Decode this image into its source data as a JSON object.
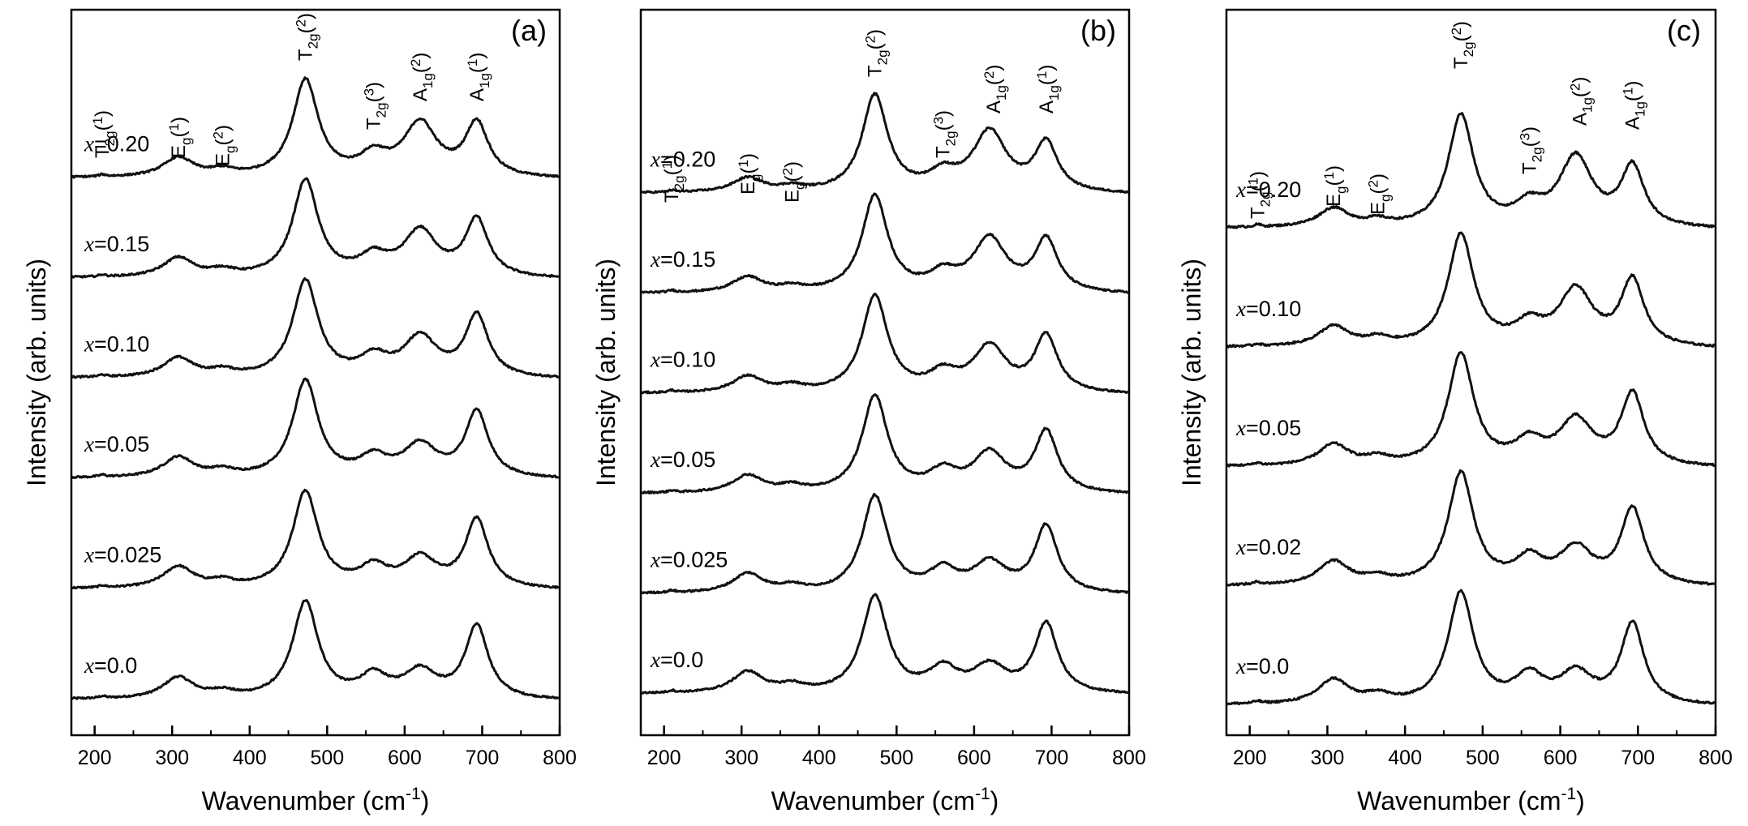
{
  "chart_data": [
    {
      "type": "line",
      "panel": "(a)",
      "xlabel_main": "Wavenumber (cm",
      "xlabel_exp": "-1",
      "xlabel_end": ")",
      "ylabel": "Intensity (arb. units)",
      "xlim": [
        170,
        800
      ],
      "xticks": [
        "200",
        "300",
        "400",
        "500",
        "600",
        "700",
        "800"
      ],
      "series": [
        {
          "name": "x=0.0",
          "var": "x",
          "value": "=0.0",
          "offset": 0.0,
          "amps": [
            0.02,
            0.22,
            0.06,
            1.0,
            0.22,
            0.28,
            0.75
          ],
          "trend": 0.05
        },
        {
          "name": "x=0.025",
          "var": "x",
          "value": "=0.025",
          "offset": 1.05,
          "amps": [
            0.02,
            0.22,
            0.06,
            1.0,
            0.2,
            0.3,
            0.71
          ],
          "trend": 0.05
        },
        {
          "name": "x=0.05",
          "var": "x",
          "value": "=0.05",
          "offset": 2.1,
          "amps": [
            0.02,
            0.21,
            0.06,
            1.0,
            0.19,
            0.33,
            0.68
          ],
          "trend": 0.05
        },
        {
          "name": "x=0.10",
          "var": "x",
          "value": "=0.10",
          "offset": 3.05,
          "amps": [
            0.02,
            0.2,
            0.06,
            1.0,
            0.19,
            0.41,
            0.64
          ],
          "trend": 0.05
        },
        {
          "name": "x=0.15",
          "var": "x",
          "value": "=0.15",
          "offset": 4.0,
          "amps": [
            0.02,
            0.2,
            0.06,
            1.0,
            0.19,
            0.47,
            0.59
          ],
          "trend": 0.05
        },
        {
          "name": "x=0.20",
          "var": "x",
          "value": "=0.20",
          "offset": 4.95,
          "amps": [
            0.02,
            0.2,
            0.06,
            1.0,
            0.2,
            0.55,
            0.55
          ],
          "trend": 0.05
        }
      ],
      "mode_labels": [
        {
          "base": "T",
          "sub": "2g",
          "idx": "1",
          "rotated": true
        },
        {
          "base": "E",
          "sub": "g",
          "idx": "1",
          "rotated": true
        },
        {
          "base": "E",
          "sub": "g",
          "idx": "2",
          "rotated": true
        },
        {
          "base": "T",
          "sub": "2g",
          "idx": "2",
          "rotated": true
        },
        {
          "base": "T",
          "sub": "2g",
          "idx": "3",
          "rotated": true
        },
        {
          "base": "A",
          "sub": "1g",
          "idx": "2",
          "rotated": true
        },
        {
          "base": "A",
          "sub": "1g",
          "idx": "1",
          "rotated": true
        }
      ]
    },
    {
      "type": "line",
      "panel": "(b)",
      "xlabel_main": "Wavenumber (cm",
      "xlabel_exp": "-1",
      "xlabel_end": ")",
      "ylabel": "Intensity (arb. units)",
      "xlim": [
        170,
        800
      ],
      "xticks": [
        "200",
        "300",
        "400",
        "500",
        "600",
        "700",
        "800"
      ],
      "series": [
        {
          "name": "x=0.0",
          "var": "x",
          "value": "=0.0",
          "offset": 0.0,
          "amps": [
            0.02,
            0.22,
            0.07,
            1.0,
            0.24,
            0.27,
            0.72
          ],
          "trend": 0.05
        },
        {
          "name": "x=0.025",
          "var": "x",
          "value": "=0.025",
          "offset": 0.95,
          "amps": [
            0.02,
            0.2,
            0.06,
            1.0,
            0.22,
            0.3,
            0.69
          ],
          "trend": 0.05
        },
        {
          "name": "x=0.05",
          "var": "x",
          "value": "=0.05",
          "offset": 1.9,
          "amps": [
            0.02,
            0.18,
            0.06,
            1.0,
            0.2,
            0.4,
            0.63
          ],
          "trend": 0.05
        },
        {
          "name": "x=0.10",
          "var": "x",
          "value": "=0.10",
          "offset": 2.85,
          "amps": [
            0.02,
            0.17,
            0.06,
            1.0,
            0.18,
            0.47,
            0.58
          ],
          "trend": 0.05
        },
        {
          "name": "x=0.15",
          "var": "x",
          "value": "=0.15",
          "offset": 3.8,
          "amps": [
            0.02,
            0.16,
            0.05,
            1.0,
            0.17,
            0.55,
            0.54
          ],
          "trend": 0.05
        },
        {
          "name": "x=0.20",
          "var": "x",
          "value": "=0.20",
          "offset": 4.75,
          "amps": [
            0.02,
            0.15,
            0.05,
            1.0,
            0.17,
            0.62,
            0.5
          ],
          "trend": 0.05
        }
      ],
      "mode_labels": [
        {
          "base": "T",
          "sub": "2g",
          "idx": "1",
          "rotated": true
        },
        {
          "base": "E",
          "sub": "g",
          "idx": "1",
          "rotated": true
        },
        {
          "base": "E",
          "sub": "g",
          "idx": "2",
          "rotated": true
        },
        {
          "base": "T",
          "sub": "2g",
          "idx": "2",
          "rotated": true
        },
        {
          "base": "T",
          "sub": "2g",
          "idx": "3",
          "rotated": true
        },
        {
          "base": "A",
          "sub": "1g",
          "idx": "2",
          "rotated": true
        },
        {
          "base": "A",
          "sub": "1g",
          "idx": "1",
          "rotated": true
        }
      ]
    },
    {
      "type": "line",
      "panel": "(c)",
      "xlabel_main": "Wavenumber (cm",
      "xlabel_exp": "-1",
      "xlabel_end": ")",
      "ylabel": "Intensity (arb. units)",
      "xlim": [
        170,
        800
      ],
      "xticks": [
        "200",
        "300",
        "400",
        "500",
        "600",
        "700",
        "800"
      ],
      "series": [
        {
          "name": "x=0.0",
          "var": "x",
          "value": "=0.0",
          "offset": 0.0,
          "amps": [
            0.02,
            0.22,
            0.07,
            1.0,
            0.24,
            0.27,
            0.72
          ],
          "trend": 0.05
        },
        {
          "name": "x=0.02",
          "var": "x",
          "value": "=0.02",
          "offset": 0.98,
          "amps": [
            0.02,
            0.21,
            0.06,
            1.0,
            0.22,
            0.32,
            0.68
          ],
          "trend": 0.05
        },
        {
          "name": "x=0.05",
          "var": "x",
          "value": "=0.05",
          "offset": 1.96,
          "amps": [
            0.02,
            0.19,
            0.06,
            1.0,
            0.2,
            0.4,
            0.64
          ],
          "trend": 0.05
        },
        {
          "name": "x=0.10",
          "var": "x",
          "value": "=0.10",
          "offset": 2.94,
          "amps": [
            0.02,
            0.18,
            0.06,
            1.0,
            0.18,
            0.5,
            0.59
          ],
          "trend": 0.05
        },
        {
          "name": "x=0.20",
          "var": "x",
          "value": "=0.20",
          "offset": 3.92,
          "amps": [
            0.02,
            0.17,
            0.05,
            1.0,
            0.17,
            0.62,
            0.53
          ],
          "trend": 0.05
        }
      ],
      "mode_labels": [
        {
          "base": "T",
          "sub": "2g",
          "idx": "1",
          "rotated": true
        },
        {
          "base": "E",
          "sub": "g",
          "idx": "1",
          "rotated": true
        },
        {
          "base": "E",
          "sub": "g",
          "idx": "2",
          "rotated": true
        },
        {
          "base": "T",
          "sub": "2g",
          "idx": "2",
          "rotated": true
        },
        {
          "base": "T",
          "sub": "2g",
          "idx": "3",
          "rotated": true
        },
        {
          "base": "A",
          "sub": "1g",
          "idx": "2",
          "rotated": true
        },
        {
          "base": "A",
          "sub": "1g",
          "idx": "1",
          "rotated": true
        }
      ]
    }
  ],
  "peaks": {
    "centers": [
      210,
      308,
      365,
      472,
      560,
      620,
      693
    ],
    "widths": [
      5,
      24,
      18,
      20,
      22,
      26,
      18
    ]
  }
}
